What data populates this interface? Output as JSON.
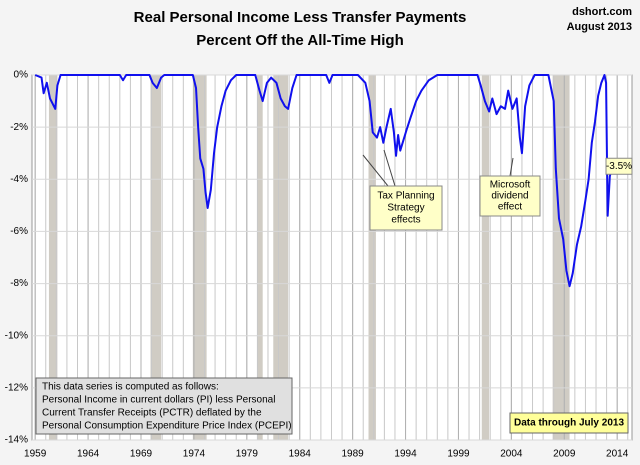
{
  "chart_data": {
    "type": "line",
    "title": "Real Personal Income Less Transfer Payments",
    "subtitle": "Percent Off the All-Time High",
    "source": "dshort.com",
    "date": "August 2013",
    "xlim": [
      1958.7,
      2015.4
    ],
    "xticks": [
      1959,
      1964,
      1969,
      1974,
      1979,
      1984,
      1989,
      1994,
      1999,
      2004,
      2009,
      2014
    ],
    "ylim": [
      -14,
      0
    ],
    "yticks": [
      {
        "value": 0,
        "label": "0%"
      },
      {
        "value": -2,
        "label": "-2%"
      },
      {
        "value": -4,
        "label": "-4%"
      },
      {
        "value": -6,
        "label": "-6%"
      },
      {
        "value": -8,
        "label": "-8%"
      },
      {
        "value": -10,
        "label": "-10%"
      },
      {
        "value": -12,
        "label": "-12%"
      },
      {
        "value": -14,
        "label": "-14%"
      }
    ],
    "grid": true,
    "recessions": [
      [
        1960.3,
        1961.1
      ],
      [
        1969.9,
        1970.9
      ],
      [
        1973.9,
        1975.2
      ],
      [
        1980.0,
        1980.5
      ],
      [
        1981.5,
        1982.9
      ],
      [
        1990.5,
        1991.2
      ],
      [
        2001.2,
        2001.9
      ],
      [
        2007.9,
        2009.5
      ]
    ],
    "series": [
      {
        "color": "#1010ee",
        "x": [
          1959.0,
          1959.6,
          1959.8,
          1960.1,
          1960.4,
          1960.9,
          1961.1,
          1961.4,
          1967.0,
          1967.3,
          1967.6,
          1969.8,
          1970.1,
          1970.5,
          1970.9,
          1971.2,
          1973.9,
          1974.2,
          1974.4,
          1974.6,
          1974.9,
          1975.1,
          1975.3,
          1975.6,
          1975.9,
          1976.2,
          1976.6,
          1977.0,
          1977.5,
          1978.0,
          1979.8,
          1980.2,
          1980.5,
          1980.9,
          1981.3,
          1981.8,
          1982.2,
          1982.6,
          1982.9,
          1983.3,
          1983.7,
          1986.5,
          1986.8,
          1987.1,
          1989.5,
          1990.2,
          1990.6,
          1990.9,
          1991.3,
          1991.6,
          1991.9,
          1992.2,
          1992.6,
          1992.9,
          1993.1,
          1993.3,
          1993.5,
          1993.8,
          1994.1,
          1994.5,
          1995.0,
          1995.5,
          1996.2,
          1997.0,
          2000.8,
          2001.1,
          2001.5,
          2001.9,
          2002.2,
          2002.6,
          2003.0,
          2003.4,
          2003.7,
          2004.1,
          2004.5,
          2004.8,
          2005.0,
          2005.3,
          2005.7,
          2006.2,
          2007.5,
          2008.0,
          2008.2,
          2008.5,
          2008.9,
          2009.2,
          2009.5,
          2009.8,
          2010.2,
          2010.6,
          2011.0,
          2011.3,
          2011.6,
          2011.9,
          2012.2,
          2012.5,
          2012.8,
          2012.95,
          2013.1,
          2013.3,
          2013.5
        ],
        "values": [
          0,
          -0.1,
          -0.7,
          -0.3,
          -0.9,
          -1.3,
          -0.4,
          0,
          0,
          -0.2,
          0,
          0,
          -0.3,
          -0.5,
          -0.1,
          0,
          0,
          -0.5,
          -2.0,
          -3.2,
          -3.6,
          -4.5,
          -5.1,
          -4.4,
          -3.0,
          -2.0,
          -1.2,
          -0.6,
          -0.2,
          0,
          0,
          -0.6,
          -1.0,
          -0.3,
          -0.1,
          -0.3,
          -0.9,
          -1.2,
          -1.3,
          -0.5,
          0,
          0,
          -0.3,
          0,
          0,
          -0.3,
          -1.0,
          -2.2,
          -2.4,
          -2.0,
          -2.6,
          -2.0,
          -1.3,
          -2.2,
          -3.1,
          -2.3,
          -2.9,
          -2.5,
          -2.1,
          -1.6,
          -1.0,
          -0.6,
          -0.2,
          0,
          0,
          -0.4,
          -1.0,
          -1.4,
          -0.9,
          -1.5,
          -1.2,
          -1.3,
          -0.6,
          -1.3,
          -0.9,
          -2.4,
          -3.0,
          -1.2,
          -0.4,
          0,
          0,
          -1.0,
          -3.6,
          -5.5,
          -6.3,
          -7.5,
          -8.1,
          -7.6,
          -6.5,
          -5.8,
          -4.8,
          -4.0,
          -2.6,
          -1.8,
          -0.8,
          -0.3,
          0,
          -0.3,
          -5.4,
          -3.9,
          -3.5
        ]
      }
    ],
    "last_value": -3.5,
    "last_value_label": "-3.5%",
    "annotations": [
      [
        "Tax Planning",
        "Strategy",
        "effects"
      ],
      [
        "Microsoft",
        "dividend",
        "effect"
      ]
    ],
    "note": [
      "This data series is computed as follows:",
      "Personal Income in current dollars  (PI) less Personal",
      "Current Transfer Receipts (PCTR) deflated by the",
      "Personal Consumption Expenditure Price Index (PCEPI)"
    ],
    "data_through": "Data through July 2013"
  }
}
